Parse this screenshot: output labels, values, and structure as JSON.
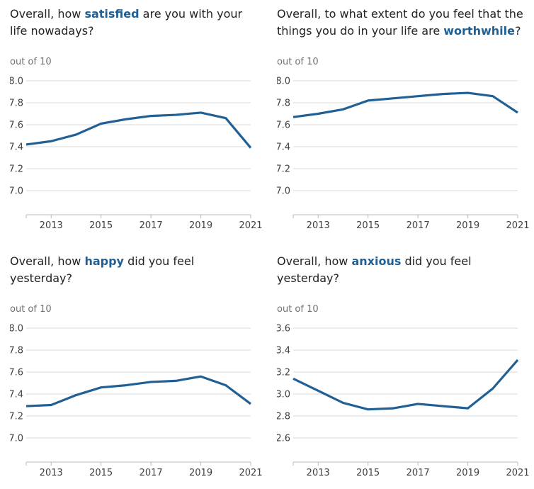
{
  "colors": {
    "line": "#206095",
    "keyword": "#206095",
    "gridline": "#d9d9d9",
    "axis": "#b9b9b9",
    "title_text": "#222222",
    "tick_label": "#414042",
    "unit_label": "#707071"
  },
  "chart_data": [
    {
      "type": "line",
      "title": "Overall, how satisfied are you with your life nowadays?",
      "title_lines": [
        [
          {
            "text": "Overall, how ",
            "em": false
          },
          {
            "text": "satisfied",
            "em": true
          },
          {
            "text": " are you with your",
            "em": false
          }
        ],
        [
          {
            "text": "life nowadays?",
            "em": false
          }
        ]
      ],
      "ylabel": "out of 10",
      "xlabel": "",
      "x": [
        2012,
        2013,
        2014,
        2015,
        2016,
        2017,
        2018,
        2019,
        2020,
        2021
      ],
      "values": [
        7.42,
        7.45,
        7.51,
        7.61,
        7.65,
        7.68,
        7.69,
        7.71,
        7.66,
        7.39
      ],
      "ylim": [
        7.0,
        8.0
      ],
      "yticks": [
        8.0,
        7.8,
        7.6,
        7.4,
        7.2,
        7.0
      ],
      "xticks": [
        2013,
        2015,
        2017,
        2019,
        2021
      ],
      "grid": true,
      "legend": "none"
    },
    {
      "type": "line",
      "title": "Overall, to what extent do you feel that the things you do in your life are worthwhile?",
      "title_lines": [
        [
          {
            "text": "Overall, to what extent do you feel that the",
            "em": false
          }
        ],
        [
          {
            "text": "things you do in your life are ",
            "em": false
          },
          {
            "text": "worthwhile",
            "em": true
          },
          {
            "text": "?",
            "em": false
          }
        ]
      ],
      "ylabel": "out of 10",
      "xlabel": "",
      "x": [
        2012,
        2013,
        2014,
        2015,
        2016,
        2017,
        2018,
        2019,
        2020,
        2021
      ],
      "values": [
        7.67,
        7.7,
        7.74,
        7.82,
        7.84,
        7.86,
        7.88,
        7.89,
        7.86,
        7.71
      ],
      "ylim": [
        7.0,
        8.0
      ],
      "yticks": [
        8.0,
        7.8,
        7.6,
        7.4,
        7.2,
        7.0
      ],
      "xticks": [
        2013,
        2015,
        2017,
        2019,
        2021
      ],
      "grid": true,
      "legend": "none"
    },
    {
      "type": "line",
      "title": "Overall, how happy did you feel yesterday?",
      "title_lines": [
        [
          {
            "text": "Overall, how ",
            "em": false
          },
          {
            "text": "happy",
            "em": true
          },
          {
            "text": " did you feel",
            "em": false
          }
        ],
        [
          {
            "text": "yesterday?",
            "em": false
          }
        ]
      ],
      "ylabel": "out of 10",
      "xlabel": "",
      "x": [
        2012,
        2013,
        2014,
        2015,
        2016,
        2017,
        2018,
        2019,
        2020,
        2021
      ],
      "values": [
        7.29,
        7.3,
        7.39,
        7.46,
        7.48,
        7.51,
        7.52,
        7.56,
        7.48,
        7.31
      ],
      "ylim": [
        7.0,
        8.0
      ],
      "yticks": [
        8.0,
        7.8,
        7.6,
        7.4,
        7.2,
        7.0
      ],
      "xticks": [
        2013,
        2015,
        2017,
        2019,
        2021
      ],
      "grid": true,
      "legend": "none"
    },
    {
      "type": "line",
      "title": "Overall, how anxious did you feel yesterday?",
      "title_lines": [
        [
          {
            "text": "Overall, how ",
            "em": false
          },
          {
            "text": "anxious",
            "em": true
          },
          {
            "text": " did you feel",
            "em": false
          }
        ],
        [
          {
            "text": "yesterday?",
            "em": false
          }
        ]
      ],
      "ylabel": "out of 10",
      "xlabel": "",
      "x": [
        2012,
        2013,
        2014,
        2015,
        2016,
        2017,
        2018,
        2019,
        2020,
        2021
      ],
      "values": [
        3.14,
        3.03,
        2.92,
        2.86,
        2.87,
        2.91,
        2.89,
        2.87,
        3.05,
        3.31
      ],
      "ylim": [
        2.6,
        3.6
      ],
      "yticks": [
        3.6,
        3.4,
        3.2,
        3.0,
        2.8,
        2.6
      ],
      "xticks": [
        2013,
        2015,
        2017,
        2019,
        2021
      ],
      "grid": true,
      "legend": "none"
    }
  ]
}
